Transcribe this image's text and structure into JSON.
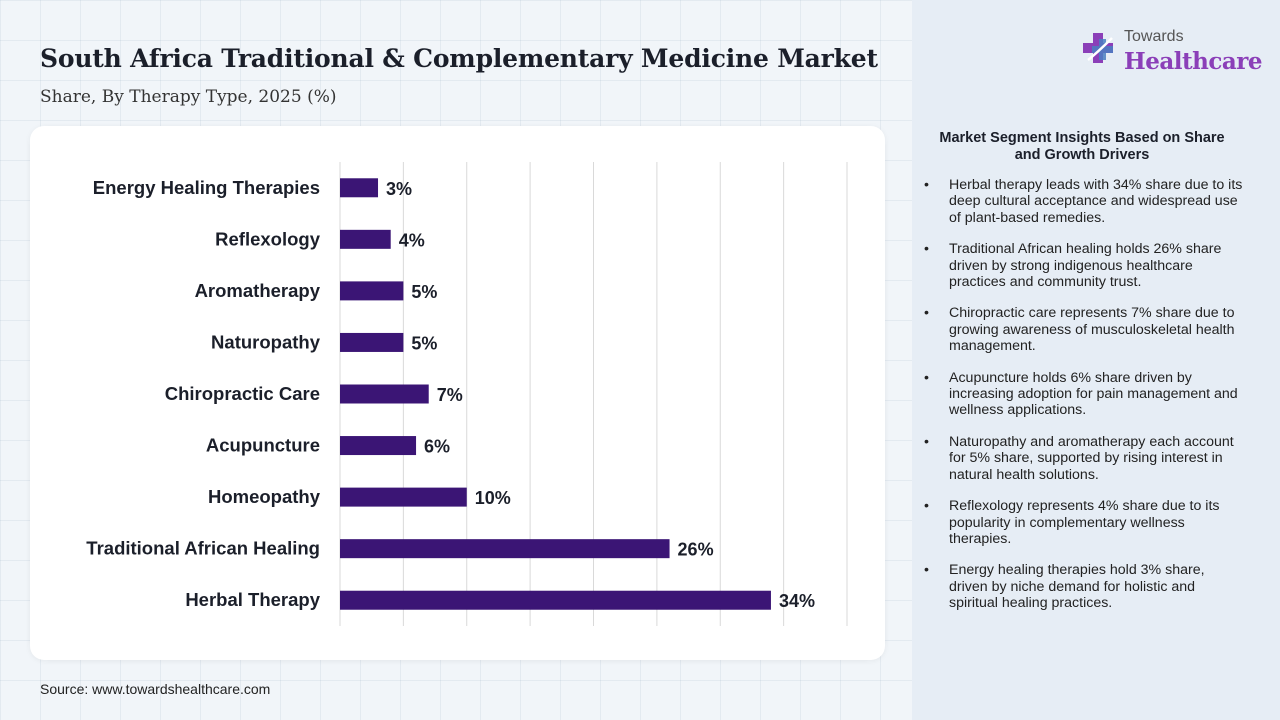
{
  "header": {
    "title": "South Africa Traditional & Complementary Medicine Market",
    "subtitle": "Share, By Therapy Type, 2025 (%)"
  },
  "logo": {
    "top": "Towards",
    "bottom": "Healthcare",
    "icon": "medical-cross-icon"
  },
  "source": "Source: www.towardshealthcare.com",
  "insights": {
    "title": "Market Segment Insights Based on Share and Growth Drivers",
    "bullet": "•",
    "items": [
      "Herbal therapy leads with 34% share due to its deep cultural acceptance and widespread use of plant-based remedies.",
      "Traditional African healing holds 26% share driven by strong indigenous healthcare practices and community trust.",
      "Chiropractic care represents 7% share due to growing awareness of musculoskeletal health management.",
      "Acupuncture holds 6% share driven by increasing adoption for pain management and wellness applications.",
      "Naturopathy and aromatherapy each account for 5% share, supported by rising interest in natural health solutions.",
      "Reflexology represents 4% share due to its popularity in complementary wellness therapies.",
      "Energy healing therapies hold 3% share, driven by niche demand for holistic and spiritual healing practices."
    ]
  },
  "colors": {
    "bar": "#3b1575",
    "grid": "#d9d9d9",
    "logo_purple": "#8b3fb8",
    "logo_blue": "#4a7fc1"
  },
  "chart_data": {
    "type": "bar",
    "orientation": "horizontal",
    "categories": [
      "Energy Healing Therapies",
      "Reflexology",
      "Aromatherapy",
      "Naturopathy",
      "Chiropractic Care",
      "Acupuncture",
      "Homeopathy",
      "Traditional African Healing",
      "Herbal Therapy"
    ],
    "values": [
      3,
      4,
      5,
      5,
      7,
      6,
      10,
      26,
      34
    ],
    "value_labels": [
      "3%",
      "4%",
      "5%",
      "5%",
      "7%",
      "6%",
      "10%",
      "26%",
      "34%"
    ],
    "xlim": [
      0,
      40
    ],
    "grid": true,
    "legend": "none"
  }
}
